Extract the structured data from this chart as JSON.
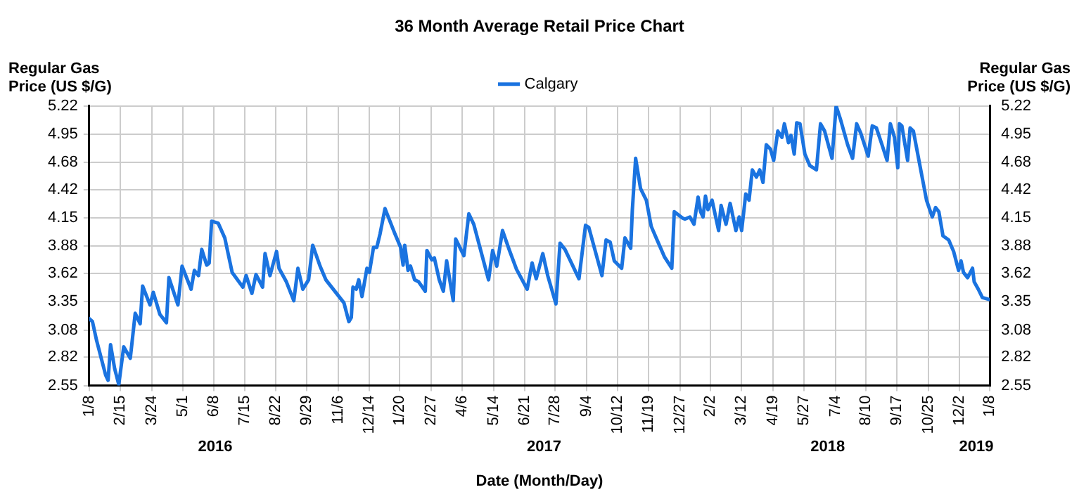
{
  "chart_data": {
    "type": "line",
    "title": "36 Month Average Retail Price Chart",
    "xlabel": "Date (Month/Day)",
    "ylabel": "Regular Gas\nPrice (US $/G)",
    "y2label": "Regular Gas\nPrice (US $/G)",
    "xlim": [
      "2016-01-08",
      "2019-01-08"
    ],
    "xticks": [
      {
        "value": "2016-01-08",
        "label": "1/8"
      },
      {
        "value": "2016-02-15",
        "label": "2/15"
      },
      {
        "value": "2016-03-24",
        "label": "3/24"
      },
      {
        "value": "2016-05-01",
        "label": "5/1"
      },
      {
        "value": "2016-06-08",
        "label": "6/8"
      },
      {
        "value": "2016-07-15",
        "label": "7/15"
      },
      {
        "value": "2016-08-22",
        "label": "8/22"
      },
      {
        "value": "2016-09-29",
        "label": "9/29"
      },
      {
        "value": "2016-11-06",
        "label": "11/6"
      },
      {
        "value": "2016-12-14",
        "label": "12/14"
      },
      {
        "value": "2017-01-20",
        "label": "1/20"
      },
      {
        "value": "2017-02-27",
        "label": "2/27"
      },
      {
        "value": "2017-04-06",
        "label": "4/6"
      },
      {
        "value": "2017-05-14",
        "label": "5/14"
      },
      {
        "value": "2017-06-21",
        "label": "6/21"
      },
      {
        "value": "2017-07-28",
        "label": "7/28"
      },
      {
        "value": "2017-09-04",
        "label": "9/4"
      },
      {
        "value": "2017-10-12",
        "label": "10/12"
      },
      {
        "value": "2017-11-19",
        "label": "11/19"
      },
      {
        "value": "2017-12-27",
        "label": "12/27"
      },
      {
        "value": "2018-02-02",
        "label": "2/2"
      },
      {
        "value": "2018-03-12",
        "label": "3/12"
      },
      {
        "value": "2018-04-19",
        "label": "4/19"
      },
      {
        "value": "2018-05-27",
        "label": "5/27"
      },
      {
        "value": "2018-07-04",
        "label": "7/4"
      },
      {
        "value": "2018-08-10",
        "label": "8/10"
      },
      {
        "value": "2018-09-17",
        "label": "9/17"
      },
      {
        "value": "2018-10-25",
        "label": "10/25"
      },
      {
        "value": "2018-12-02",
        "label": "12/2"
      },
      {
        "value": "2019-01-08",
        "label": "1/8"
      }
    ],
    "ylim": [
      2.55,
      5.22
    ],
    "yticks": [
      2.55,
      2.82,
      3.08,
      3.35,
      3.62,
      3.88,
      4.15,
      4.42,
      4.68,
      4.95,
      5.22
    ],
    "y2lim": [
      2.55,
      5.22
    ],
    "y2ticks": [
      2.55,
      2.82,
      3.08,
      3.35,
      3.62,
      3.88,
      4.15,
      4.42,
      4.68,
      4.95,
      5.22
    ],
    "grid": true,
    "legend": "top",
    "marker": "none",
    "line_style": "solid",
    "annotations": [
      "2016",
      "2017",
      "2018",
      "2019"
    ],
    "x": [
      "2016-01-08",
      "2016-01-12",
      "2016-01-17",
      "2016-01-28",
      "2016-01-31",
      "2016-02-03",
      "2016-02-08",
      "2016-02-13",
      "2016-02-19",
      "2016-02-27",
      "2016-03-04",
      "2016-03-10",
      "2016-03-13",
      "2016-03-22",
      "2016-03-26",
      "2016-04-03",
      "2016-04-11",
      "2016-04-14",
      "2016-04-25",
      "2016-04-30",
      "2016-05-11",
      "2016-05-15",
      "2016-05-20",
      "2016-05-24",
      "2016-05-30",
      "2016-06-02",
      "2016-06-05",
      "2016-06-13",
      "2016-06-21",
      "2016-06-30",
      "2016-07-13",
      "2016-07-17",
      "2016-07-24",
      "2016-07-29",
      "2016-08-06",
      "2016-08-09",
      "2016-08-15",
      "2016-08-23",
      "2016-08-26",
      "2016-09-04",
      "2016-09-13",
      "2016-09-18",
      "2016-09-24",
      "2016-10-01",
      "2016-10-06",
      "2016-10-15",
      "2016-10-22",
      "2016-11-13",
      "2016-11-19",
      "2016-11-22",
      "2016-11-24",
      "2016-11-28",
      "2016-12-01",
      "2016-12-05",
      "2016-12-11",
      "2016-12-14",
      "2016-12-19",
      "2016-12-23",
      "2016-12-27",
      "2017-01-02",
      "2017-01-14",
      "2017-01-21",
      "2017-01-24",
      "2017-01-26",
      "2017-01-30",
      "2017-02-02",
      "2017-02-07",
      "2017-02-12",
      "2017-02-20",
      "2017-02-22",
      "2017-02-28",
      "2017-03-03",
      "2017-03-09",
      "2017-03-14",
      "2017-03-18",
      "2017-03-26",
      "2017-03-29",
      "2017-04-03",
      "2017-04-08",
      "2017-04-14",
      "2017-04-20",
      "2017-05-08",
      "2017-05-13",
      "2017-05-18",
      "2017-05-25",
      "2017-06-02",
      "2017-06-11",
      "2017-06-24",
      "2017-06-30",
      "2017-07-05",
      "2017-07-13",
      "2017-07-19",
      "2017-07-29",
      "2017-08-03",
      "2017-08-09",
      "2017-08-26",
      "2017-09-03",
      "2017-09-07",
      "2017-09-23",
      "2017-09-28",
      "2017-10-03",
      "2017-10-08",
      "2017-10-17",
      "2017-10-21",
      "2017-10-28",
      "2017-10-30",
      "2017-11-03",
      "2017-11-09",
      "2017-11-16",
      "2017-11-22",
      "2017-11-28",
      "2017-12-08",
      "2017-12-17",
      "2017-12-20",
      "2017-12-30",
      "2018-01-02",
      "2018-01-08",
      "2018-01-13",
      "2018-01-18",
      "2018-01-21",
      "2018-01-24",
      "2018-01-27",
      "2018-01-30",
      "2018-02-04",
      "2018-02-12",
      "2018-02-15",
      "2018-02-21",
      "2018-02-26",
      "2018-03-05",
      "2018-03-09",
      "2018-03-12",
      "2018-03-17",
      "2018-03-21",
      "2018-03-25",
      "2018-03-30",
      "2018-04-03",
      "2018-04-07",
      "2018-04-11",
      "2018-04-16",
      "2018-04-20",
      "2018-04-25",
      "2018-04-30",
      "2018-05-03",
      "2018-05-08",
      "2018-05-11",
      "2018-05-15",
      "2018-05-18",
      "2018-05-22",
      "2018-05-28",
      "2018-06-03",
      "2018-06-11",
      "2018-06-16",
      "2018-06-21",
      "2018-06-30",
      "2018-07-05",
      "2018-07-10",
      "2018-07-19",
      "2018-07-25",
      "2018-07-30",
      "2018-08-04",
      "2018-08-13",
      "2018-08-18",
      "2018-08-23",
      "2018-08-29",
      "2018-09-05",
      "2018-09-09",
      "2018-09-14",
      "2018-09-18",
      "2018-09-20",
      "2018-09-23",
      "2018-09-30",
      "2018-10-03",
      "2018-10-07",
      "2018-10-15",
      "2018-10-23",
      "2018-10-30",
      "2018-11-03",
      "2018-11-07",
      "2018-11-12",
      "2018-11-19",
      "2018-11-25",
      "2018-12-01",
      "2018-12-04",
      "2018-12-07",
      "2018-12-12",
      "2018-12-18",
      "2018-12-20",
      "2018-12-25",
      "2018-12-30",
      "2019-01-08"
    ],
    "series": [
      {
        "name": "Calgary",
        "color": "#1a73e0",
        "values": [
          3.19,
          3.16,
          2.98,
          2.65,
          2.6,
          2.94,
          2.71,
          2.56,
          2.92,
          2.81,
          3.24,
          3.14,
          3.5,
          3.32,
          3.44,
          3.23,
          3.15,
          3.58,
          3.32,
          3.69,
          3.47,
          3.65,
          3.6,
          3.85,
          3.7,
          3.72,
          4.12,
          4.1,
          3.96,
          3.63,
          3.49,
          3.6,
          3.43,
          3.61,
          3.49,
          3.81,
          3.6,
          3.83,
          3.67,
          3.54,
          3.36,
          3.67,
          3.47,
          3.56,
          3.89,
          3.69,
          3.56,
          3.34,
          3.16,
          3.2,
          3.49,
          3.47,
          3.56,
          3.4,
          3.67,
          3.63,
          3.87,
          3.87,
          4.0,
          4.24,
          4.0,
          3.87,
          3.7,
          3.89,
          3.65,
          3.69,
          3.56,
          3.54,
          3.45,
          3.84,
          3.75,
          3.77,
          3.56,
          3.45,
          3.74,
          3.36,
          3.95,
          3.87,
          3.79,
          4.19,
          4.09,
          3.56,
          3.84,
          3.69,
          4.03,
          3.85,
          3.66,
          3.47,
          3.72,
          3.57,
          3.81,
          3.6,
          3.33,
          3.91,
          3.85,
          3.57,
          4.08,
          4.06,
          3.6,
          3.94,
          3.92,
          3.74,
          3.67,
          3.96,
          3.86,
          4.23,
          4.72,
          4.43,
          4.32,
          4.07,
          3.96,
          3.78,
          3.67,
          4.21,
          4.15,
          4.14,
          4.16,
          4.09,
          4.35,
          4.21,
          4.16,
          4.36,
          4.23,
          4.32,
          4.03,
          4.27,
          4.09,
          4.29,
          4.03,
          4.16,
          4.03,
          4.38,
          4.32,
          4.61,
          4.54,
          4.61,
          4.49,
          4.85,
          4.81,
          4.7,
          4.98,
          4.92,
          5.05,
          4.87,
          4.94,
          4.76,
          5.06,
          5.05,
          4.76,
          4.65,
          4.61,
          5.05,
          4.98,
          4.72,
          5.22,
          5.1,
          4.85,
          4.72,
          5.05,
          4.96,
          4.74,
          5.03,
          5.01,
          4.87,
          4.7,
          5.05,
          4.92,
          4.63,
          5.05,
          5.03,
          4.7,
          5.01,
          4.98,
          4.65,
          4.32,
          4.16,
          4.25,
          4.21,
          3.98,
          3.94,
          3.83,
          3.65,
          3.74,
          3.63,
          3.58,
          3.67,
          3.54,
          3.47,
          3.39,
          3.37
        ]
      }
    ]
  }
}
